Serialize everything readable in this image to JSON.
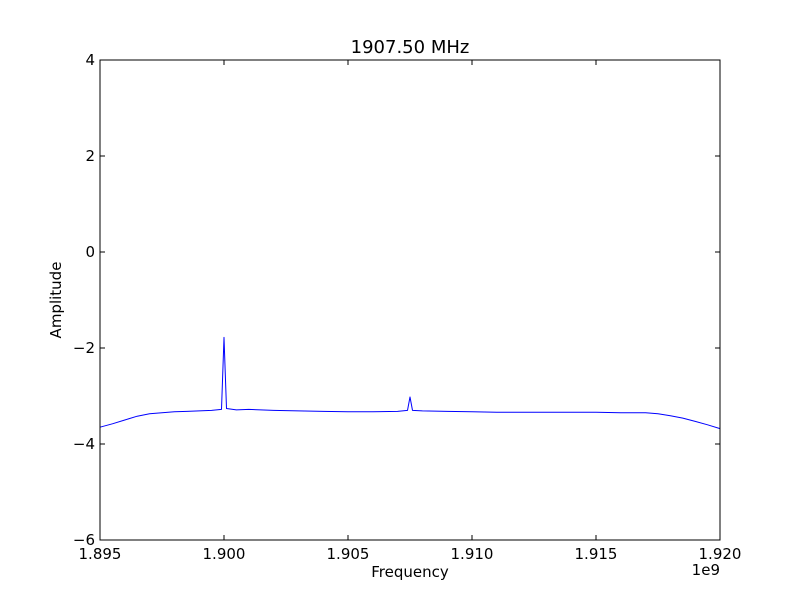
{
  "chart_data": {
    "type": "line",
    "title": "1907.50 MHz",
    "xlabel": "Frequency",
    "ylabel": "Amplitude",
    "x_offset_label": "1e9",
    "xlim": [
      1895000000,
      1920000000
    ],
    "ylim": [
      -6,
      4
    ],
    "xticks": [
      1895000000,
      1900000000,
      1905000000,
      1910000000,
      1915000000,
      1920000000
    ],
    "xtick_labels": [
      "1.895",
      "1.900",
      "1.905",
      "1.910",
      "1.915",
      "1.920"
    ],
    "yticks": [
      -6,
      -4,
      -2,
      0,
      2,
      4
    ],
    "ytick_labels": [
      "−6",
      "−4",
      "−2",
      "0",
      "2",
      "4"
    ],
    "grid": false,
    "series": [
      {
        "color": "#0000ff",
        "x": [
          1895000000,
          1895500000,
          1896000000,
          1896500000,
          1897000000,
          1897500000,
          1898000000,
          1898500000,
          1899000000,
          1899500000,
          1899900000,
          1900000000,
          1900100000,
          1900500000,
          1901000000,
          1902000000,
          1903000000,
          1904000000,
          1905000000,
          1906000000,
          1907000000,
          1907400000,
          1907500000,
          1907600000,
          1908000000,
          1909000000,
          1910000000,
          1911000000,
          1912000000,
          1913000000,
          1914000000,
          1915000000,
          1916000000,
          1917000000,
          1917500000,
          1918000000,
          1918500000,
          1919000000,
          1919500000,
          1920000000
        ],
        "y": [
          -3.65,
          -3.58,
          -3.5,
          -3.42,
          -3.37,
          -3.35,
          -3.33,
          -3.32,
          -3.31,
          -3.3,
          -3.28,
          -1.78,
          -3.26,
          -3.29,
          -3.28,
          -3.3,
          -3.31,
          -3.32,
          -3.33,
          -3.33,
          -3.32,
          -3.3,
          -3.02,
          -3.3,
          -3.31,
          -3.32,
          -3.33,
          -3.34,
          -3.34,
          -3.34,
          -3.34,
          -3.34,
          -3.35,
          -3.35,
          -3.37,
          -3.41,
          -3.46,
          -3.53,
          -3.6,
          -3.68
        ]
      }
    ]
  }
}
